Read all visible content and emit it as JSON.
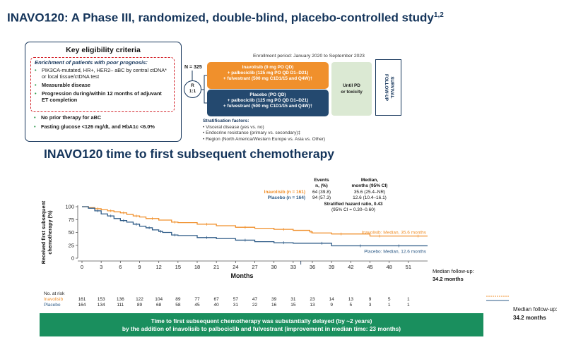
{
  "slide": {
    "title_main": "INAVO120: A Phase III, randomized, double-blind, placebo-controlled study",
    "title_sup": "1,2",
    "chart_title": "INAVO120 time to first subsequent chemotherapy"
  },
  "eligibility": {
    "heading": "Key eligibility criteria",
    "enrichment_heading": "Enrichment of patients with poor prognosis:",
    "criteria": [
      "PIK3CA-mutated, HR+, HER2– aBC by central ctDNA* or local tissue/ctDNA test",
      "Measurable disease",
      "Progression during/within 12 months of adjuvant ET completion"
    ],
    "other_criteria": [
      "No prior therapy for aBC",
      "Fasting glucose <126 mg/dL and HbA1c <6.0%"
    ]
  },
  "design": {
    "enrollment": "Enrollment period: January 2020 to September 2023",
    "n_label": "N = 325",
    "randomization": [
      "R",
      "1:1"
    ],
    "arm1": [
      "Inavolisib (9 mg PO QD)",
      "+ palbociclib (125 mg PO QD D1–D21)",
      "+ fulvestrant (500 mg C1D1/15 and Q4W)†"
    ],
    "arm2": [
      "Placebo (PO QD)",
      "+ palbociclib (125 mg PO QD D1–D21)",
      "+ fulvestrant (500 mg C1D1/15 and Q4W)†"
    ],
    "until_pd": [
      "Until PD",
      "or toxicity"
    ],
    "survival_followup": [
      "SURVIVAL",
      "FOLLOW-UP"
    ],
    "stratification_heading": "Stratification factors:",
    "stratification": [
      "Visceral disease (yes vs. no)",
      "Endocrine resistance (primary vs. secondary)‡",
      "Region (North America/Western Europe vs. Asia vs. Other)"
    ]
  },
  "conclusion": [
    "Time to first subsequent chemotherapy was substantially delayed (by ~2 years)",
    "by the addition of inavolisib to palbociclib and fulvestrant (improvement in median time: 23 months)"
  ],
  "followup_side": [
    "Median follow-up:",
    "34.2 months"
  ],
  "colors": {
    "navy": "#14345a",
    "inavolisib": "#f0902c",
    "placebo": "#2e5b87",
    "green_band": "#1a8f5e",
    "red_dash": "#d21f26"
  },
  "chart_data": {
    "type": "line",
    "title": "INAVO120 time to first subsequent chemotherapy",
    "xlabel": "Months",
    "ylabel": "Received first subsequent chemotherapy (%)",
    "xlim": [
      0,
      54
    ],
    "ylim": [
      0,
      100
    ],
    "x_ticks": [
      0,
      3,
      6,
      9,
      12,
      15,
      18,
      21,
      24,
      27,
      30,
      33,
      36,
      39,
      42,
      45,
      48,
      51
    ],
    "y_ticks": [
      0,
      25,
      50,
      75,
      100
    ],
    "series": [
      {
        "name": "Inavolisib",
        "color": "#f0902c",
        "x": [
          0,
          1,
          2,
          3,
          4,
          5,
          6,
          7,
          8,
          9,
          10,
          12,
          14,
          15,
          18,
          21,
          24,
          27,
          30,
          33,
          35.6,
          36,
          39,
          42,
          45,
          48,
          51,
          54
        ],
        "y": [
          100,
          98,
          96,
          94,
          92,
          90,
          88,
          85,
          82,
          80,
          77,
          74,
          70,
          69,
          66,
          63,
          60,
          58,
          56,
          54,
          51,
          49,
          47,
          47,
          43,
          43,
          43,
          43
        ]
      },
      {
        "name": "Placebo",
        "color": "#2e5b87",
        "x": [
          0,
          1,
          2,
          3,
          4,
          5,
          6,
          7,
          8,
          9,
          10,
          11,
          12,
          12.6,
          14,
          15,
          18,
          21,
          24,
          27,
          30,
          33,
          36,
          39,
          42,
          45,
          48,
          51,
          54
        ],
        "y": [
          100,
          97,
          92,
          86,
          82,
          77,
          73,
          70,
          66,
          62,
          59,
          55,
          52,
          50,
          45,
          44,
          40,
          38,
          35,
          32,
          30,
          29,
          29,
          24,
          24,
          24,
          24,
          24,
          24
        ]
      }
    ],
    "median_labels": [
      "Inavolisib: Median, 35.6 months",
      "Placebo: Median, 12.6 months"
    ],
    "legend": {
      "header_events": [
        "Events",
        "n, (%)"
      ],
      "header_median": [
        "Median,",
        "months (95% CI)"
      ],
      "rows": [
        {
          "label": "Inavolisib (n = 161)",
          "events": "64 (39.8)",
          "median": "35.6 (25.4–NR)"
        },
        {
          "label": "Placebo (n = 164)",
          "events": "94 (57.3)",
          "median": "12.6 (10.4–16.1)"
        }
      ],
      "hr": "Stratified hazard ratio, 0.43",
      "ci": "(95% CI = 0.30–0.60)"
    },
    "median_followup": [
      "Median follow-up:",
      "34.2 months"
    ],
    "at_risk": {
      "heading": "No. at risk",
      "rows": [
        {
          "label": "Inavolisib",
          "values": [
            "161",
            "153",
            "136",
            "122",
            "104",
            "89",
            "77",
            "67",
            "57",
            "47",
            "39",
            "31",
            "23",
            "14",
            "13",
            "9",
            "5",
            "1"
          ]
        },
        {
          "label": "Placebo",
          "values": [
            "164",
            "134",
            "111",
            "89",
            "68",
            "58",
            "45",
            "40",
            "31",
            "22",
            "16",
            "15",
            "13",
            "9",
            "5",
            "3",
            "1",
            "1"
          ]
        }
      ]
    }
  }
}
